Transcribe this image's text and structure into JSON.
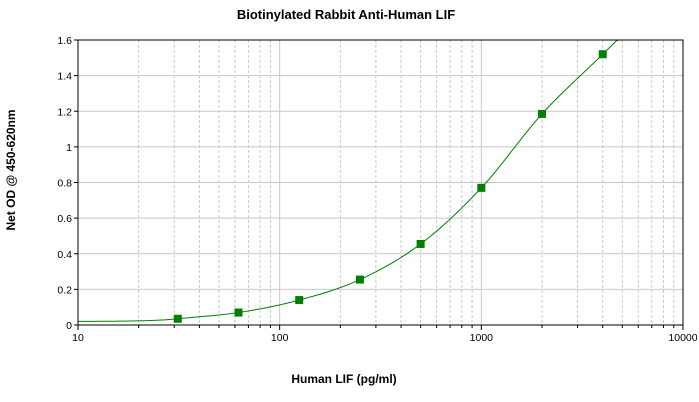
{
  "chart_data": {
    "type": "scatter",
    "title": "Biotinylated Rabbit Anti-Human LIF",
    "xlabel": "Human LIF (pg/ml)",
    "ylabel": "Net OD @ 450-620nm",
    "xscale": "log",
    "xlim": [
      10,
      10000
    ],
    "ylim": [
      0,
      1.6
    ],
    "x_ticks": [
      "10",
      "100",
      "1000",
      "10000"
    ],
    "y_ticks": [
      "0",
      "0.2",
      "0.4",
      "0.6",
      "0.8",
      "1",
      "1.2",
      "1.4",
      "1.6"
    ],
    "grid": true,
    "legend": "none",
    "series": [
      {
        "color": "#008000",
        "marker": "square",
        "fit_line": true,
        "x": [
          31.25,
          62.5,
          125,
          250,
          500,
          1000,
          2000,
          4000
        ],
        "y": [
          0.035,
          0.07,
          0.14,
          0.255,
          0.455,
          0.77,
          1.185,
          1.52
        ]
      }
    ]
  }
}
